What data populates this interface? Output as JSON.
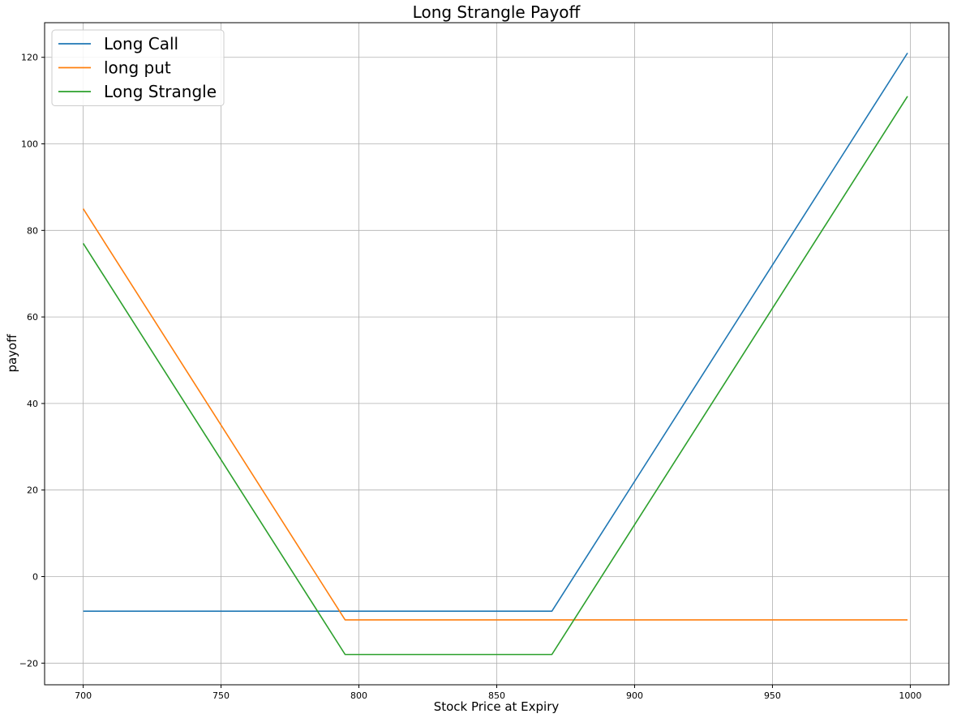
{
  "chart_data": {
    "type": "line",
    "title": "Long Strangle Payoff",
    "xlabel": "Stock Price at Expiry",
    "ylabel": "payoff",
    "xlim": [
      686,
      1014
    ],
    "ylim": [
      -25,
      128
    ],
    "xticks": [
      700,
      750,
      800,
      850,
      900,
      950,
      1000
    ],
    "yticks": [
      -20,
      0,
      20,
      40,
      60,
      80,
      100,
      120
    ],
    "grid": true,
    "legend_position": "top-left",
    "series": [
      {
        "name": "Long Call",
        "color": "#1f77b4",
        "points": [
          [
            700,
            -8
          ],
          [
            870,
            -8
          ],
          [
            999,
            121
          ]
        ]
      },
      {
        "name": "long put",
        "color": "#ff7f0e",
        "points": [
          [
            700,
            85
          ],
          [
            795,
            -10
          ],
          [
            999,
            -10
          ]
        ]
      },
      {
        "name": "Long Strangle",
        "color": "#2ca02c",
        "points": [
          [
            700,
            77
          ],
          [
            795,
            -18
          ],
          [
            870,
            -18
          ],
          [
            999,
            111
          ]
        ]
      }
    ]
  }
}
